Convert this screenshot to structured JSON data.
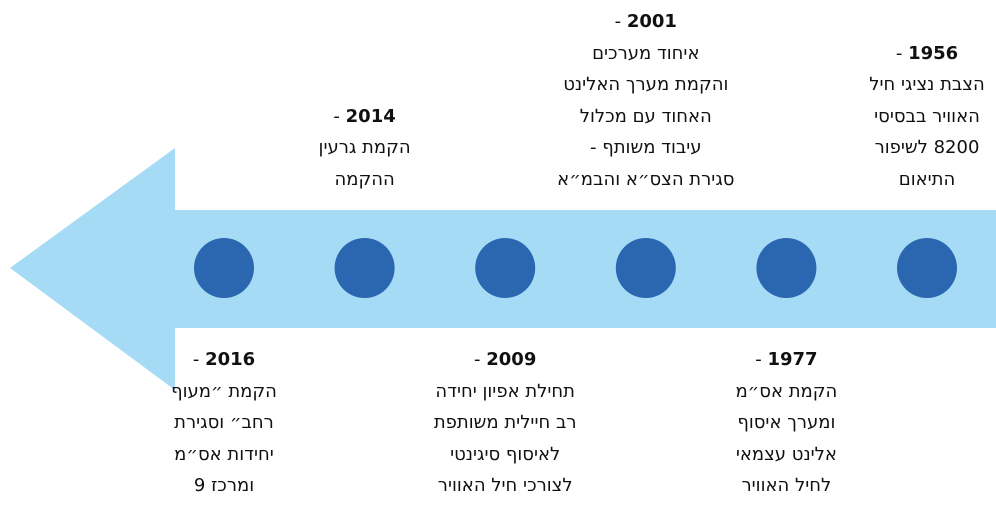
{
  "events": [
    {
      "year": "1956",
      "separator": "-",
      "lines": [
        "הצבת נציגי חיל",
        "האוויר בבסיסי",
        "8200 לשיפור",
        "התיאום"
      ]
    },
    {
      "year": "1977",
      "separator": "-",
      "lines": [
        "הקמת אס״מ",
        "ומערך איסוף",
        "אלינט עצמאי",
        "לחיל האוויר"
      ]
    },
    {
      "year": "2001",
      "separator": "-",
      "lines": [
        "איחוד מערכים",
        "והקמת מערך האלינט",
        "האחוד עם מכלול",
        "עיבוד משותף -",
        "סגירת הצס״א והבמ״א"
      ]
    },
    {
      "year": "2009",
      "separator": "-",
      "lines": [
        "תחילת אפיון יחידה",
        "רב חיילית משותפת",
        "לאיסוף סיגינטי",
        "לצורכי חיל האוויר"
      ]
    },
    {
      "year": "2014",
      "separator": "-",
      "lines": [
        "הקמת גרעין",
        "ההקמה"
      ]
    },
    {
      "year": "2016",
      "separator": "-",
      "lines": [
        "הקמת ״מעוף",
        "רחב״ וסגירת",
        "יחידות אס״מ",
        "ומרכז 9"
      ]
    }
  ]
}
